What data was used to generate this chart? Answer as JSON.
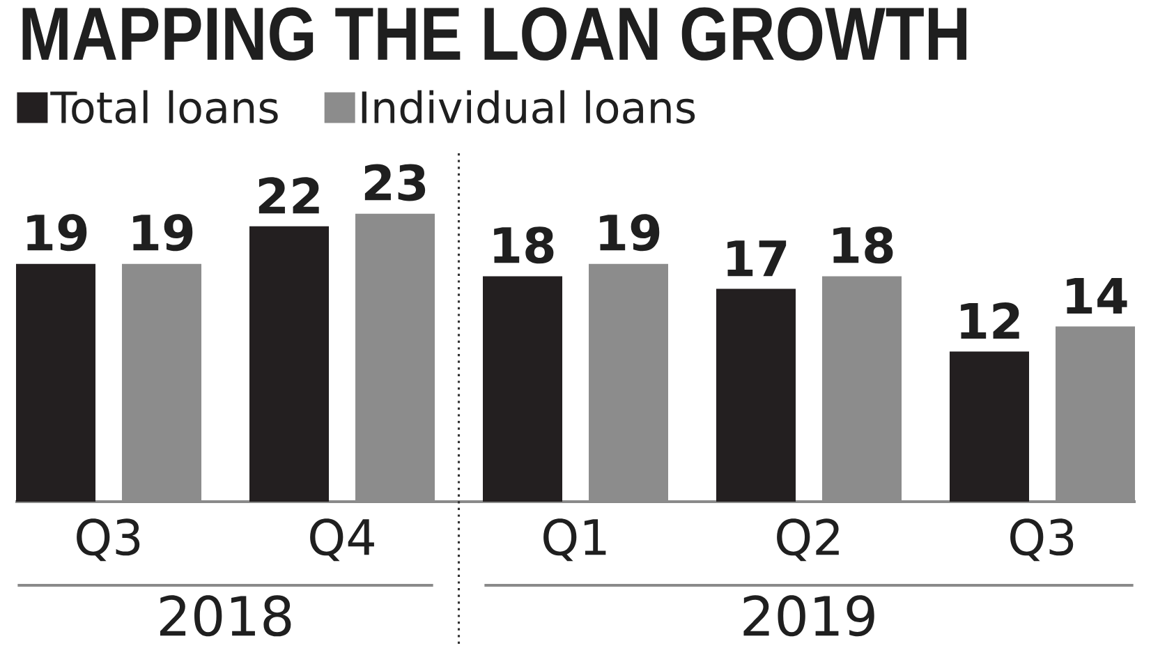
{
  "chart_data": {
    "type": "bar",
    "title": "MAPPING THE LOAN GROWTH",
    "categories": [
      "Q3",
      "Q4",
      "Q1",
      "Q2",
      "Q3"
    ],
    "series": [
      {
        "name": "Total loans",
        "color": "#231f20",
        "values": [
          19,
          22,
          18,
          17,
          12
        ]
      },
      {
        "name": "Individual loans",
        "color": "#8c8c8c",
        "values": [
          19,
          23,
          19,
          18,
          14
        ]
      }
    ],
    "data_labels": true,
    "legend": "top left",
    "annotations": [
      "2018",
      "2019"
    ]
  }
}
